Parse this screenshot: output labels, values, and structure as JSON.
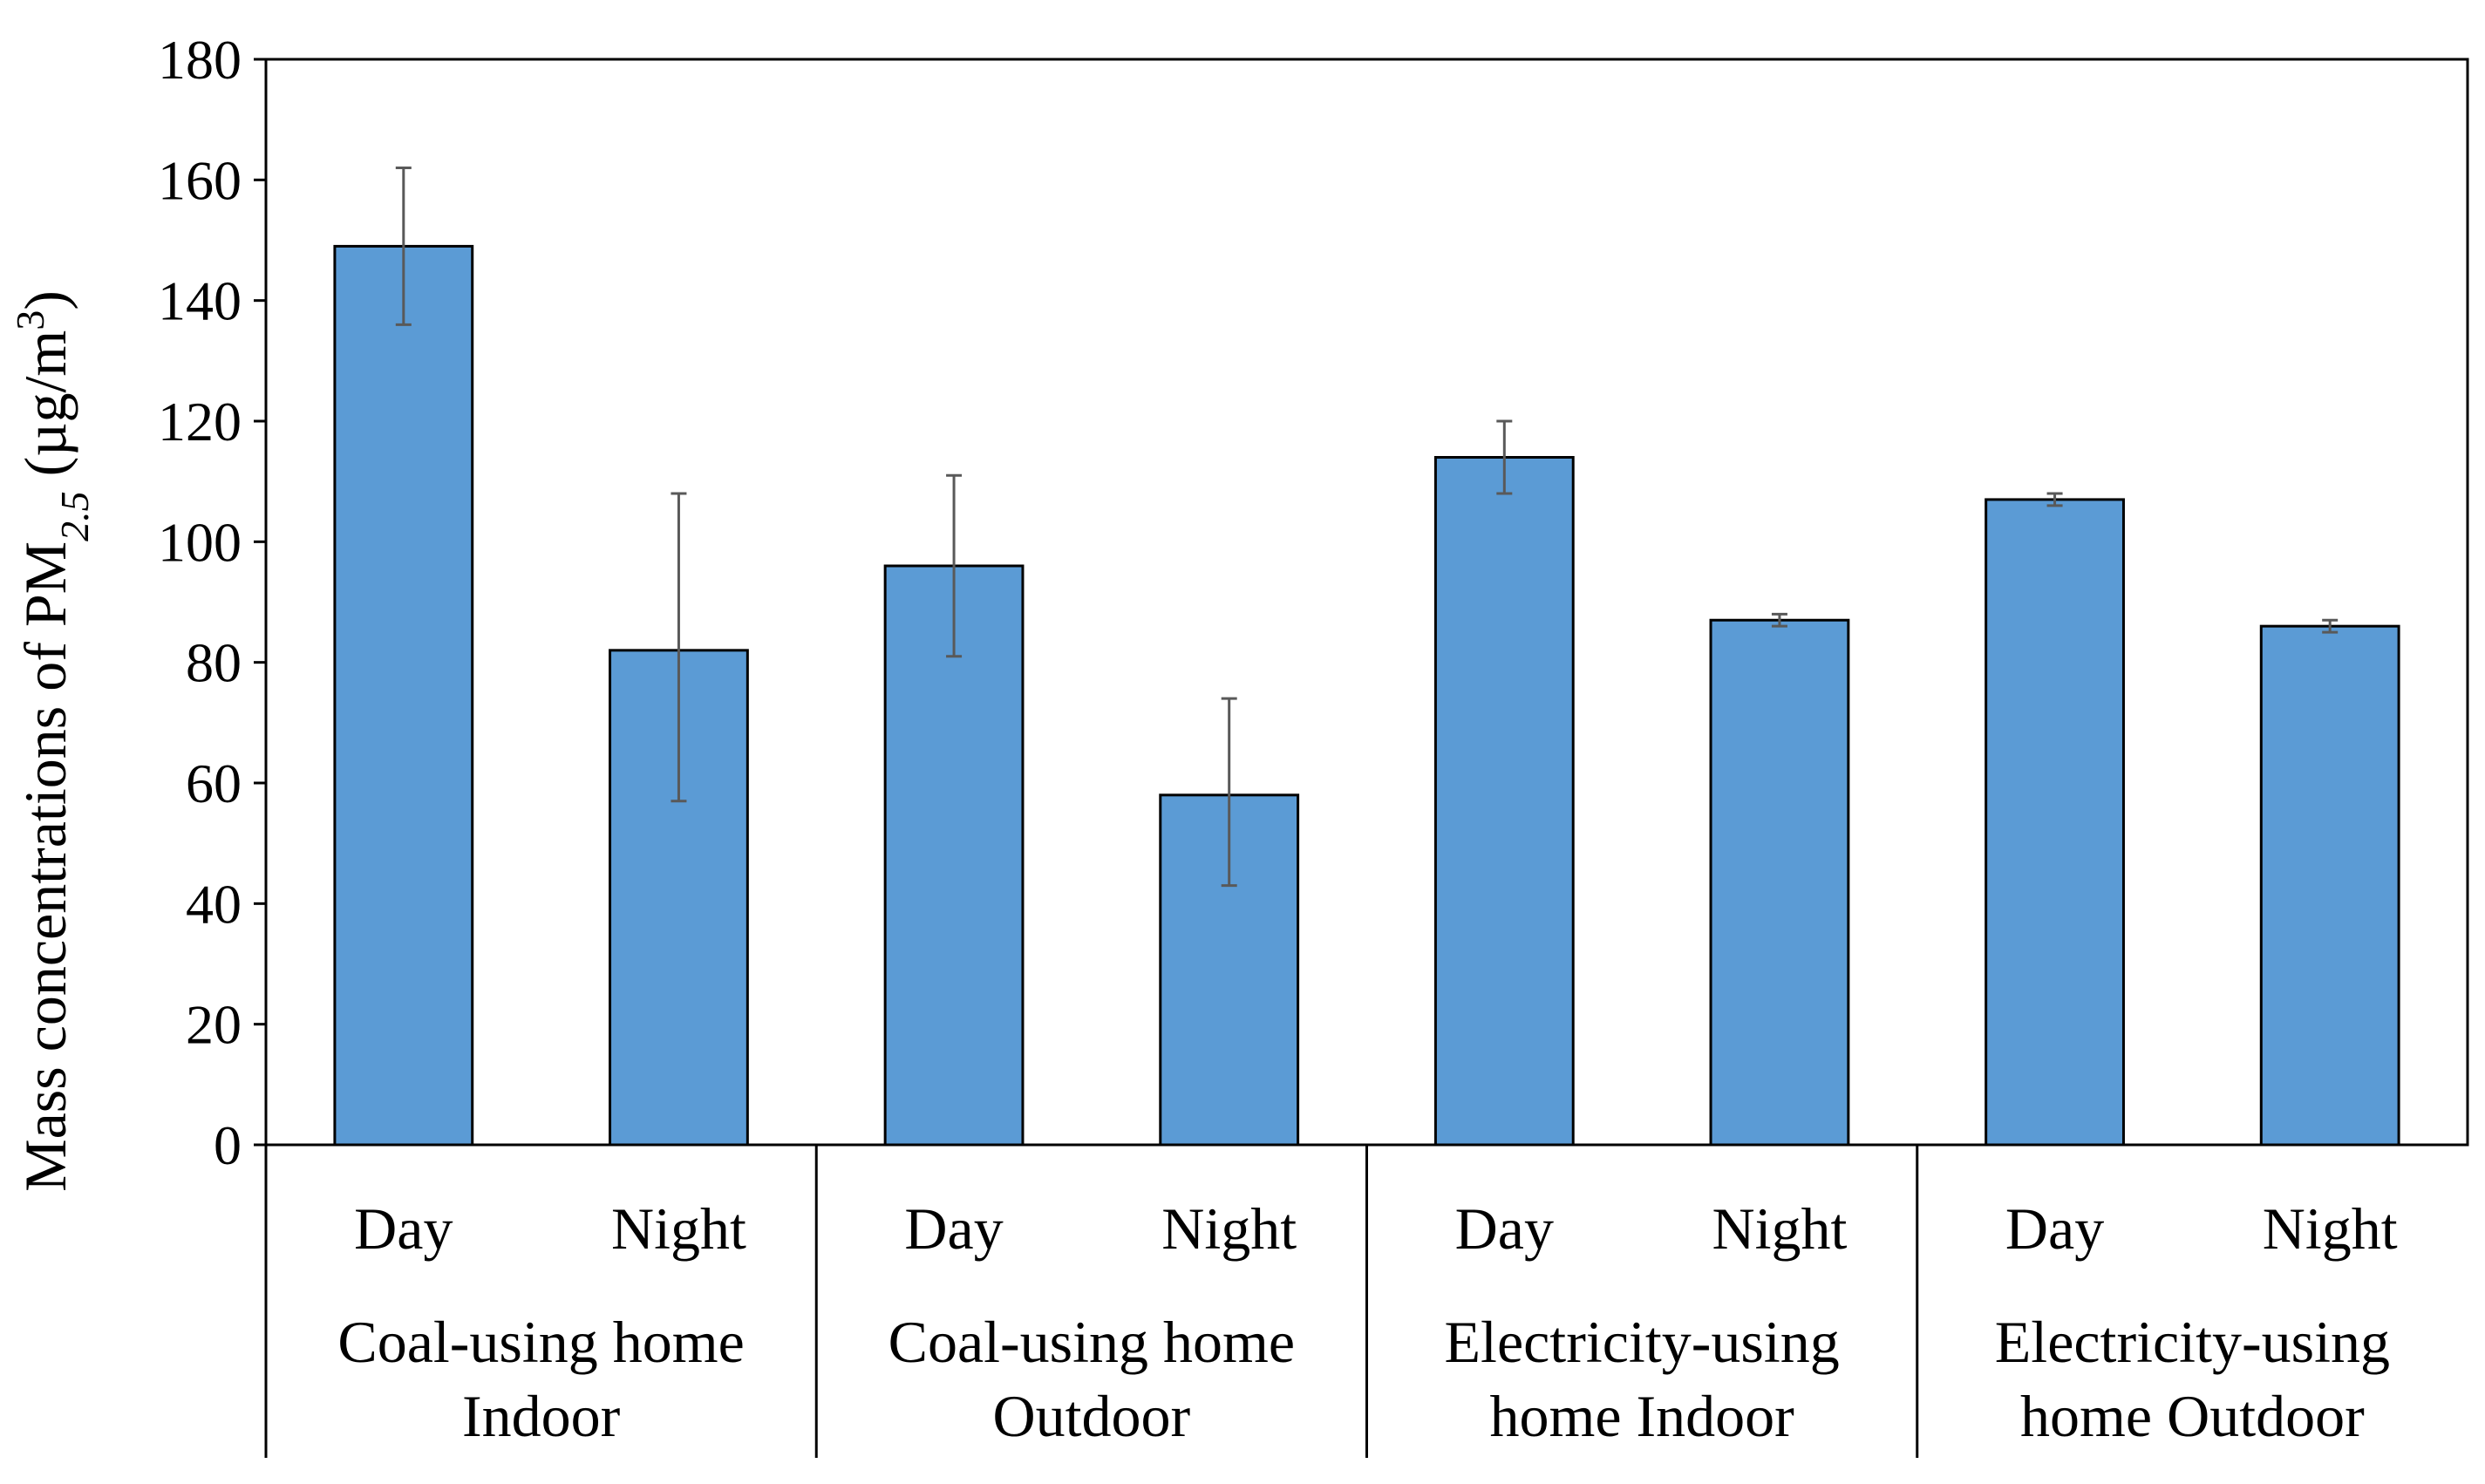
{
  "chart_data": {
    "type": "bar",
    "ylabel_prefix": "Mass concentrations of PM",
    "ylabel_sub": "2.5",
    "ylabel_units": " (µg/m",
    "ylabel_sup": "3",
    "ylabel_close": ")",
    "xlabel": "",
    "ylim": [
      0,
      180
    ],
    "yticks": [
      0,
      20,
      40,
      60,
      80,
      100,
      120,
      140,
      160,
      180
    ],
    "bar_color": "#5B9BD5",
    "grid": false,
    "groups": [
      {
        "label_lines": [
          "Coal-using home",
          "Indoor"
        ],
        "categories": [
          "Day",
          "Night"
        ]
      },
      {
        "label_lines": [
          "Coal-using home",
          "Outdoor"
        ],
        "categories": [
          "Day",
          "Night"
        ]
      },
      {
        "label_lines": [
          "Electricity-using",
          "home Indoor"
        ],
        "categories": [
          "Day",
          "Night"
        ]
      },
      {
        "label_lines": [
          "Electricity-using",
          "home Outdoor"
        ],
        "categories": [
          "Day",
          "Night"
        ]
      }
    ],
    "values": [
      149,
      82,
      96,
      58,
      114,
      87,
      107,
      86
    ],
    "error_low": [
      136,
      57,
      81,
      43,
      108,
      86,
      106,
      85
    ],
    "error_high": [
      162,
      108,
      111,
      74,
      120,
      88,
      108,
      87
    ]
  }
}
